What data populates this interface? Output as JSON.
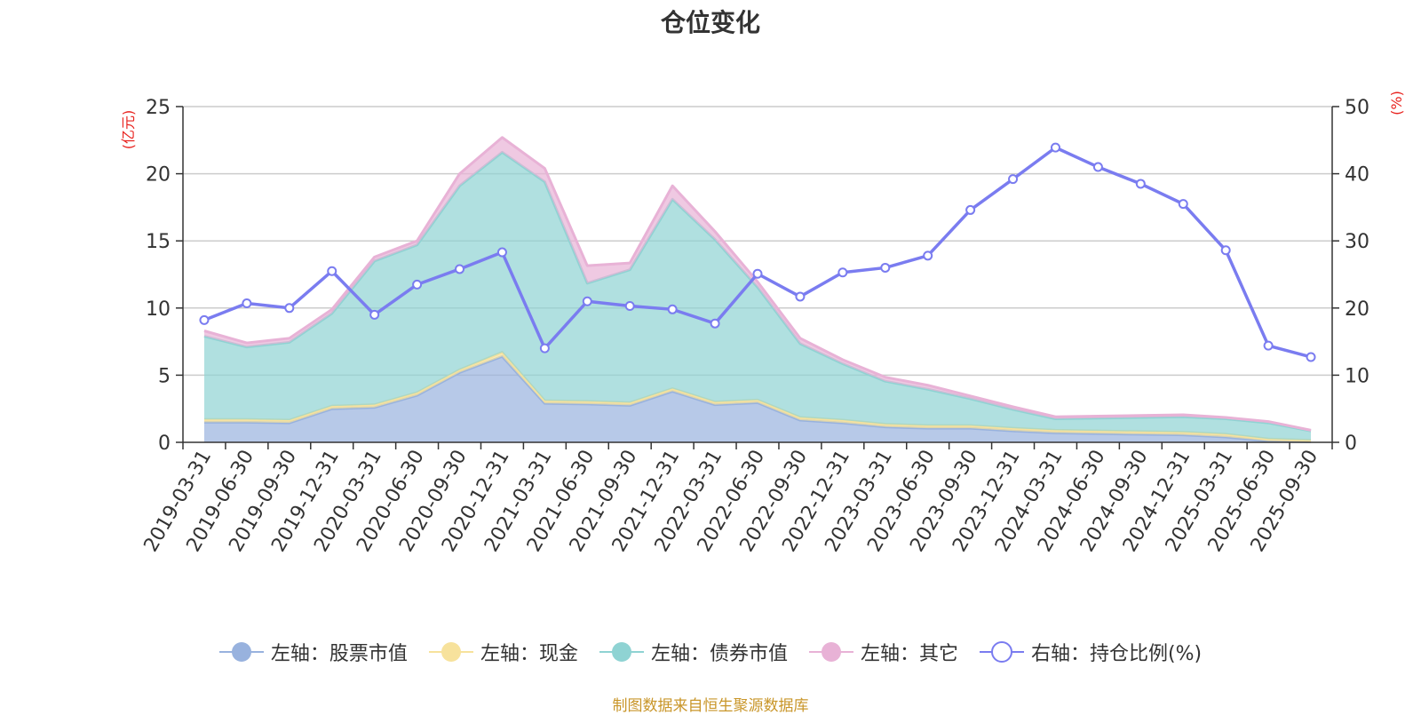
{
  "chart_data": {
    "type": "area",
    "title": "仓位变化",
    "left_axis_unit": "(亿元)",
    "right_axis_unit": "(%)",
    "categories": [
      "2019-03-31",
      "2019-06-30",
      "2019-09-30",
      "2019-12-31",
      "2020-03-31",
      "2020-06-30",
      "2020-09-30",
      "2020-12-31",
      "2021-03-31",
      "2021-06-30",
      "2021-09-30",
      "2021-12-31",
      "2022-03-31",
      "2022-06-30",
      "2022-09-30",
      "2022-12-31",
      "2023-03-31",
      "2023-06-30",
      "2023-09-30",
      "2023-12-31",
      "2024-03-31",
      "2024-06-30",
      "2024-09-30",
      "2024-12-31",
      "2025-03-31",
      "2025-06-30",
      "2025-09-30"
    ],
    "ylim_left": [
      0,
      25
    ],
    "yticks_left": [
      0,
      5,
      10,
      15,
      20,
      25
    ],
    "ylim_right": [
      0,
      50
    ],
    "yticks_right": [
      0,
      10,
      20,
      30,
      40,
      50
    ],
    "grid": true,
    "legend_position": "bottom",
    "series": [
      {
        "name": "左轴：股票市值",
        "axis": "left",
        "kind": "stacked-area",
        "color": "#98b2de",
        "values": [
          1.5,
          1.5,
          1.45,
          2.5,
          2.6,
          3.5,
          5.2,
          6.4,
          2.9,
          2.85,
          2.75,
          3.8,
          2.8,
          2.95,
          1.65,
          1.45,
          1.15,
          1.05,
          1.05,
          0.85,
          0.7,
          0.65,
          0.6,
          0.55,
          0.4,
          0.1,
          0.05
        ]
      },
      {
        "name": "左轴：现金",
        "axis": "left",
        "kind": "stacked-area",
        "color": "#f7e29c",
        "values": [
          0.2,
          0.2,
          0.2,
          0.2,
          0.2,
          0.2,
          0.2,
          0.3,
          0.2,
          0.2,
          0.2,
          0.2,
          0.2,
          0.2,
          0.2,
          0.2,
          0.2,
          0.2,
          0.2,
          0.2,
          0.2,
          0.2,
          0.2,
          0.2,
          0.2,
          0.15,
          0.1
        ]
      },
      {
        "name": "左轴：债券市值",
        "axis": "left",
        "kind": "stacked-area",
        "color": "#8fd3d3",
        "values": [
          6.2,
          5.4,
          5.8,
          6.9,
          10.7,
          11.0,
          13.7,
          14.9,
          16.3,
          8.8,
          9.9,
          14.1,
          12.1,
          8.4,
          5.5,
          4.2,
          3.2,
          2.7,
          2.0,
          1.4,
          0.85,
          0.95,
          1.05,
          1.15,
          1.15,
          1.2,
          0.7
        ]
      },
      {
        "name": "左轴：其它",
        "axis": "left",
        "kind": "stacked-area",
        "color": "#e8b2d6",
        "values": [
          0.4,
          0.3,
          0.3,
          0.3,
          0.3,
          0.3,
          0.9,
          1.1,
          1.0,
          1.3,
          0.5,
          1.0,
          0.6,
          0.4,
          0.4,
          0.3,
          0.3,
          0.3,
          0.2,
          0.2,
          0.15,
          0.15,
          0.15,
          0.15,
          0.1,
          0.1,
          0.05
        ]
      },
      {
        "name": "右轴：持仓比例(%)",
        "axis": "right",
        "kind": "line",
        "color": "#7a7cf0",
        "values": [
          18.2,
          20.7,
          20.0,
          25.5,
          19.0,
          23.5,
          25.8,
          28.3,
          14.0,
          21.0,
          20.3,
          19.8,
          17.7,
          25.1,
          21.7,
          25.3,
          26.0,
          27.8,
          34.6,
          39.2,
          43.9,
          41.0,
          38.5,
          35.5,
          28.6,
          14.4,
          12.7
        ]
      }
    ]
  },
  "source_note": "制图数据来自恒生聚源数据库"
}
